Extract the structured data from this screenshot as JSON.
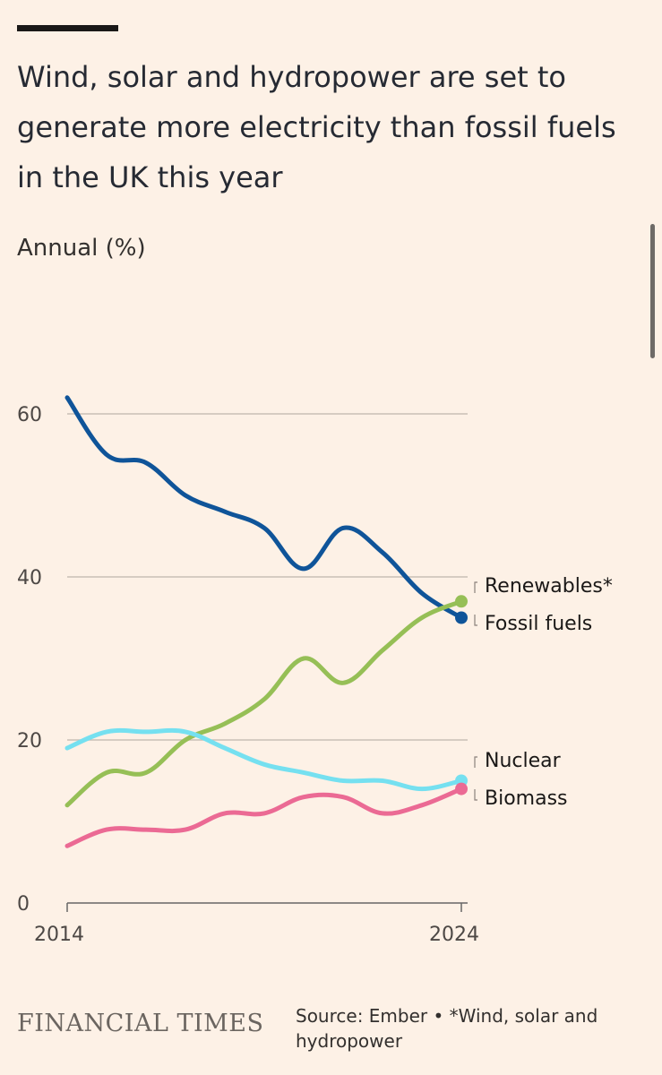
{
  "title": "Wind, solar and hydropower are set to generate more electricity than fossil fuels in the UK this year",
  "subtitle": "Annual (%)",
  "source": "Source: Ember • *Wind, solar and hydropower",
  "brand": "FINANCIAL TIMES",
  "chart_data": {
    "type": "line",
    "title": "Wind, solar and hydropower are set to generate more electricity than fossil fuels in the UK this year",
    "ylabel": "Annual (%)",
    "xlabel": "",
    "xlim": [
      2014,
      2024
    ],
    "ylim": [
      0,
      65
    ],
    "x_ticks": [
      "2014",
      "2024"
    ],
    "y_ticks": [
      "0",
      "20",
      "40",
      "60"
    ],
    "x": [
      2014,
      2015,
      2016,
      2017,
      2018,
      2019,
      2020,
      2021,
      2022,
      2023,
      2024
    ],
    "series": [
      {
        "name": "Renewables*",
        "color": "#96bf56",
        "values": [
          12,
          16,
          16,
          20,
          22,
          25,
          30,
          27,
          31,
          35,
          37
        ]
      },
      {
        "name": "Fossil fuels",
        "color": "#0f5499",
        "values": [
          62,
          55,
          54,
          50,
          48,
          46,
          41,
          46,
          43,
          38,
          35
        ]
      },
      {
        "name": "Nuclear",
        "color": "#75e0f0",
        "values": [
          19,
          21,
          21,
          21,
          19,
          17,
          16,
          15,
          15,
          14,
          15
        ]
      },
      {
        "name": "Biomass",
        "color": "#eb6a94",
        "values": [
          7,
          9,
          9,
          9,
          11,
          11,
          13,
          13,
          11,
          12,
          14
        ]
      }
    ],
    "grid": true,
    "legend": "direct labels at line ends"
  }
}
